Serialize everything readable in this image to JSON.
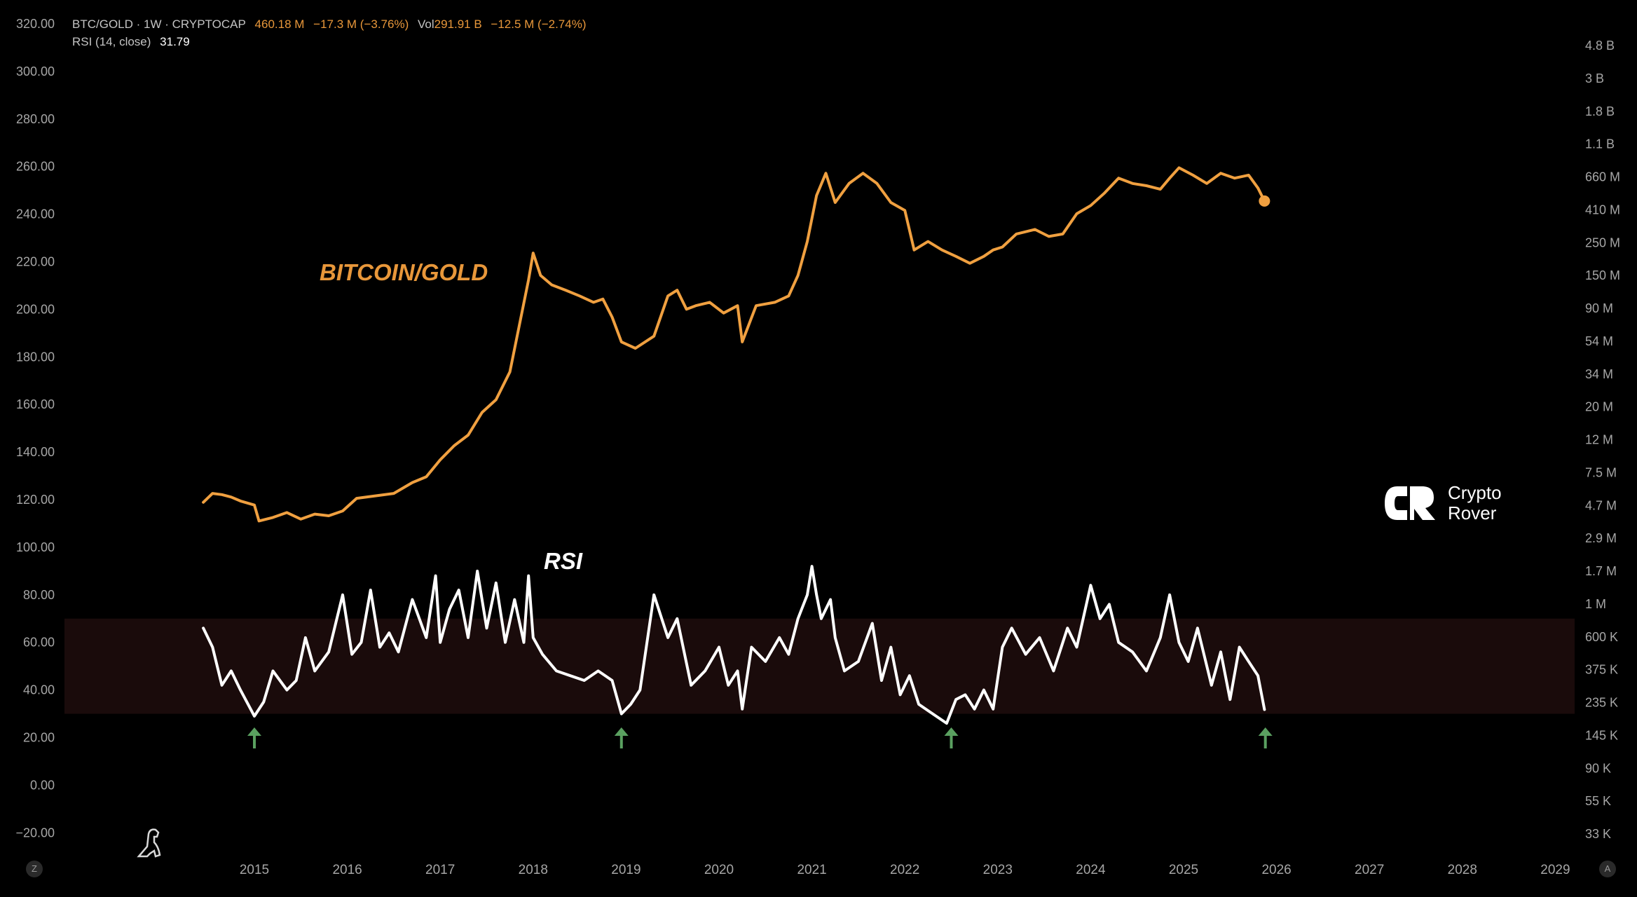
{
  "header": {
    "symbol": "BTC/GOLD · 1W · CRYPTOCAP",
    "price": "460.18 M",
    "change": "−17.3 M (−3.76%)",
    "vol_label": "Vol",
    "vol_value": "291.91 B",
    "vol_change": "−12.5 M (−2.74%)",
    "rsi_label": "RSI (14, close)",
    "rsi_value": "31.79"
  },
  "annotations": {
    "main_series_label": "BITCOIN/GOLD",
    "rsi_label": "RSI"
  },
  "logo": {
    "line1": "Crypto",
    "line2": "Rover"
  },
  "corner_buttons": {
    "left": "Z",
    "right": "A"
  },
  "colors": {
    "background": "#000000",
    "btc_gold_line": "#f0a040",
    "rsi_line": "#ffffff",
    "rsi_band": "#1a0b0b",
    "arrow": "#5aa060"
  },
  "chart_data": {
    "type": "line",
    "left_axis_ticks": [
      "320.00",
      "300.00",
      "280.00",
      "260.00",
      "240.00",
      "220.00",
      "200.00",
      "180.00",
      "160.00",
      "140.00",
      "120.00",
      "100.00",
      "80.00",
      "60.00",
      "40.00",
      "20.00",
      "0.00",
      "−20.00"
    ],
    "right_axis_ticks": [
      "4.8 B",
      "3 B",
      "1.8 B",
      "1.1 B",
      "660 M",
      "410 M",
      "250 M",
      "150 M",
      "90 M",
      "54 M",
      "34 M",
      "20 M",
      "12 M",
      "7.5 M",
      "4.7 M",
      "2.9 M",
      "1.7 M",
      "1 M",
      "600 K",
      "375 K",
      "235 K",
      "145 K",
      "90 K",
      "55 K",
      "33 K"
    ],
    "x_ticks": [
      "2015",
      "2016",
      "2017",
      "2018",
      "2019",
      "2020",
      "2021",
      "2022",
      "2023",
      "2024",
      "2025",
      "2026",
      "2027",
      "2028",
      "2029"
    ],
    "x_range": [
      2013.0,
      2029.3
    ],
    "left_ylim": [
      -26,
      326
    ],
    "right_axis_scale": "log",
    "rsi_band": [
      30,
      70
    ],
    "series": [
      {
        "name": "BITCOIN/GOLD",
        "axis": "right",
        "x": [
          2014.45,
          2014.55,
          2014.65,
          2014.75,
          2014.85,
          2015.0,
          2015.05,
          2015.2,
          2015.35,
          2015.5,
          2015.65,
          2015.8,
          2015.95,
          2016.1,
          2016.3,
          2016.5,
          2016.7,
          2016.85,
          2017.0,
          2017.15,
          2017.3,
          2017.45,
          2017.6,
          2017.75,
          2017.85,
          2017.95,
          2018.0,
          2018.08,
          2018.2,
          2018.35,
          2018.5,
          2018.65,
          2018.75,
          2018.85,
          2018.95,
          2019.1,
          2019.3,
          2019.45,
          2019.55,
          2019.65,
          2019.75,
          2019.9,
          2020.05,
          2020.2,
          2020.25,
          2020.4,
          2020.6,
          2020.75,
          2020.85,
          2020.95,
          2021.05,
          2021.15,
          2021.25,
          2021.4,
          2021.55,
          2021.7,
          2021.85,
          2022.0,
          2022.1,
          2022.25,
          2022.4,
          2022.55,
          2022.7,
          2022.85,
          2022.95,
          2023.05,
          2023.2,
          2023.4,
          2023.55,
          2023.7,
          2023.85,
          2024.0,
          2024.15,
          2024.3,
          2024.45,
          2024.6,
          2024.75,
          2024.85,
          2024.95,
          2025.1,
          2025.25,
          2025.4,
          2025.55,
          2025.7,
          2025.8,
          2025.87
        ],
        "values": [
          4.9,
          5.6,
          5.5,
          5.3,
          5.0,
          4.7,
          3.7,
          3.9,
          4.2,
          3.8,
          4.1,
          4.0,
          4.3,
          5.2,
          5.4,
          5.6,
          6.6,
          7.2,
          9.3,
          11.5,
          13.5,
          19.0,
          23.0,
          35.0,
          70.0,
          140.0,
          210.0,
          150.0,
          130.0,
          120.0,
          110.0,
          100.0,
          105.0,
          80.0,
          55.0,
          50.0,
          60.0,
          110.0,
          120.0,
          90.0,
          95.0,
          100.0,
          85.0,
          95.0,
          55.0,
          95.0,
          100.0,
          110.0,
          150.0,
          250.0,
          500.0,
          700.0,
          450.0,
          600.0,
          700.0,
          600.0,
          450.0,
          400.0,
          220.0,
          250.0,
          220.0,
          200.0,
          180.0,
          200.0,
          220.0,
          230.0,
          280.0,
          300.0,
          270.0,
          280.0,
          380.0,
          430.0,
          520.0,
          650.0,
          600.0,
          580.0,
          550.0,
          650.0,
          760.0,
          680.0,
          600.0,
          700.0,
          650.0,
          680.0,
          560.0,
          460.18
        ]
      },
      {
        "name": "RSI",
        "axis": "left",
        "x": [
          2014.45,
          2014.55,
          2014.65,
          2014.75,
          2014.85,
          2015.0,
          2015.1,
          2015.2,
          2015.35,
          2015.45,
          2015.55,
          2015.65,
          2015.8,
          2015.95,
          2016.05,
          2016.15,
          2016.25,
          2016.35,
          2016.45,
          2016.55,
          2016.7,
          2016.85,
          2016.95,
          2017.0,
          2017.1,
          2017.2,
          2017.3,
          2017.4,
          2017.5,
          2017.6,
          2017.7,
          2017.8,
          2017.9,
          2017.95,
          2018.0,
          2018.1,
          2018.25,
          2018.4,
          2018.55,
          2018.7,
          2018.85,
          2018.95,
          2019.05,
          2019.15,
          2019.3,
          2019.45,
          2019.55,
          2019.7,
          2019.85,
          2020.0,
          2020.1,
          2020.2,
          2020.25,
          2020.35,
          2020.5,
          2020.65,
          2020.75,
          2020.85,
          2020.95,
          2021.0,
          2021.05,
          2021.1,
          2021.2,
          2021.25,
          2021.35,
          2021.5,
          2021.65,
          2021.75,
          2021.85,
          2021.95,
          2022.05,
          2022.15,
          2022.3,
          2022.45,
          2022.55,
          2022.65,
          2022.75,
          2022.85,
          2022.95,
          2023.05,
          2023.15,
          2023.3,
          2023.45,
          2023.6,
          2023.75,
          2023.85,
          2024.0,
          2024.1,
          2024.2,
          2024.3,
          2024.45,
          2024.6,
          2024.75,
          2024.85,
          2024.95,
          2025.05,
          2025.15,
          2025.3,
          2025.4,
          2025.5,
          2025.6,
          2025.7,
          2025.8,
          2025.87
        ],
        "values": [
          66,
          58,
          42,
          48,
          40,
          29,
          35,
          48,
          40,
          44,
          62,
          48,
          56,
          80,
          55,
          60,
          82,
          58,
          64,
          56,
          78,
          62,
          88,
          60,
          74,
          82,
          62,
          90,
          66,
          85,
          60,
          78,
          60,
          88,
          62,
          55,
          48,
          46,
          44,
          48,
          44,
          30,
          34,
          40,
          80,
          62,
          70,
          42,
          48,
          58,
          42,
          48,
          32,
          58,
          52,
          62,
          55,
          70,
          80,
          92,
          80,
          70,
          78,
          62,
          48,
          52,
          68,
          44,
          58,
          38,
          46,
          34,
          30,
          26,
          36,
          38,
          32,
          40,
          32,
          58,
          66,
          55,
          62,
          48,
          66,
          58,
          84,
          70,
          76,
          60,
          56,
          48,
          62,
          80,
          60,
          52,
          66,
          42,
          56,
          36,
          58,
          52,
          46,
          31.79
        ]
      }
    ],
    "arrows_at": [
      2015.0,
      2018.95,
      2022.5,
      2025.88
    ]
  }
}
